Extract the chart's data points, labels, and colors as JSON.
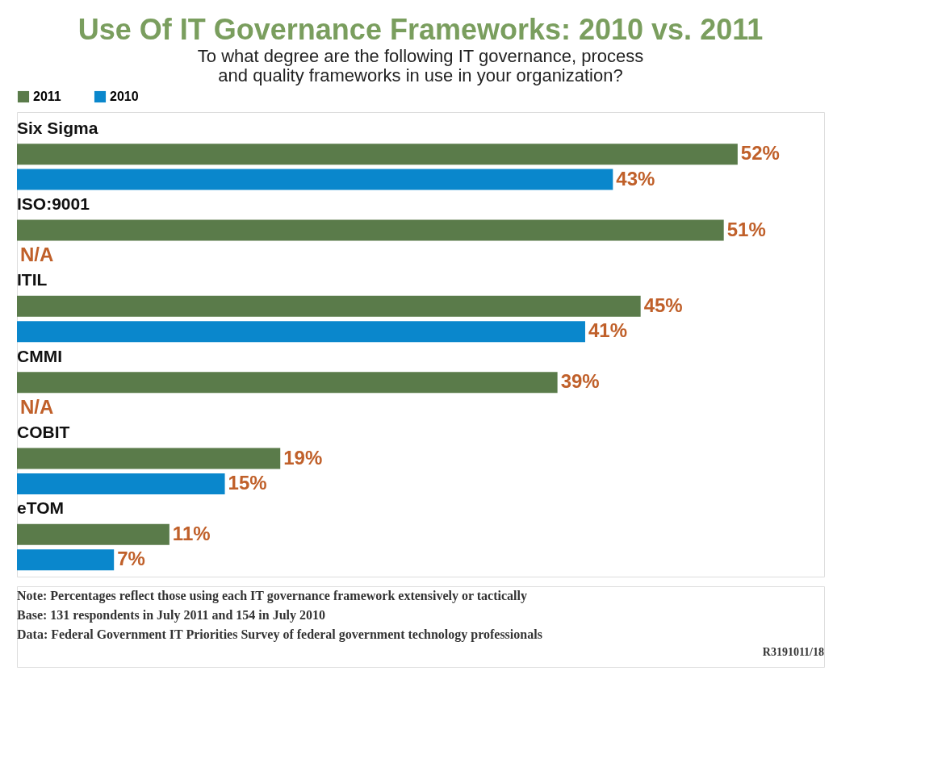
{
  "chart_data": {
    "type": "bar",
    "orientation": "horizontal",
    "title": "Use Of IT Governance Frameworks: 2010 vs. 2011",
    "subtitle": "To what degree are the following IT governance, process\nand quality frameworks in use in your organization?",
    "categories": [
      "Six Sigma",
      "ISO:9001",
      "ITIL",
      "CMMI",
      "COBIT",
      "eTOM"
    ],
    "series": [
      {
        "name": "2011",
        "color": "#5a7b4a",
        "values": [
          52,
          51,
          45,
          39,
          19,
          11
        ],
        "value_labels": [
          "52%",
          "51%",
          "45%",
          "39%",
          "19%",
          "11%"
        ]
      },
      {
        "name": "2010",
        "color": "#0a87cc",
        "values": [
          43,
          null,
          41,
          null,
          15,
          7
        ],
        "value_labels": [
          "43%",
          "N/A",
          "41%",
          "N/A",
          "15%",
          "7%"
        ]
      }
    ],
    "legend": "top left",
    "grid": false,
    "annotations": [
      "Note: Percentages reflect those using each IT governance framework extensively or tactically",
      "Base: 131 respondents in July 2011 and 154 in July 2010",
      "Data: Federal Government IT Priorities Survey of federal government technology professionals",
      "R3191011/18"
    ]
  }
}
